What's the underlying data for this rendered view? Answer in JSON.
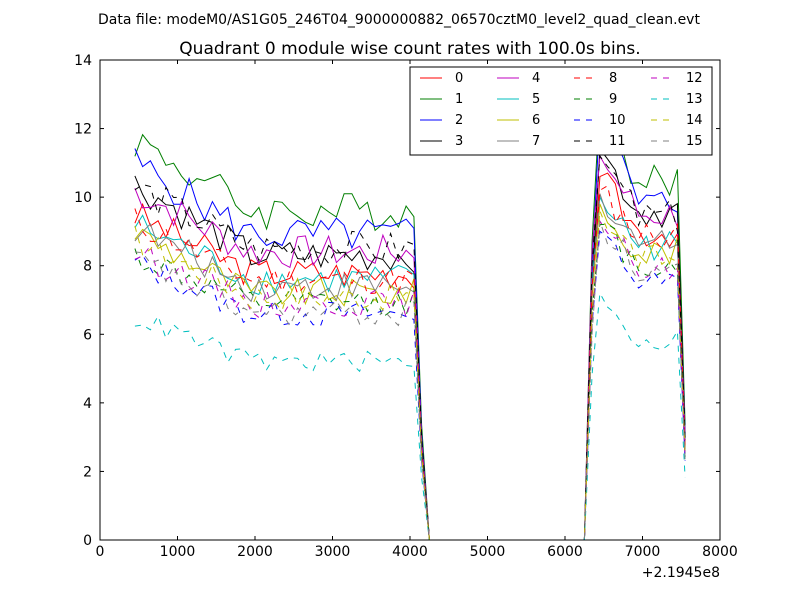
{
  "chart_data": {
    "type": "line",
    "suptitle": "Data file: modeM0/AS1G05_246T04_9000000882_06570cztM0_level2_quad_clean.evt",
    "title": "Quadrant 0 module wise count rates with 100.0s bins.",
    "xlabel": "",
    "ylabel": "",
    "offset_text": "+2.1945e8",
    "xlim": [
      0,
      8000
    ],
    "ylim": [
      0,
      14
    ],
    "x_ticks": [
      0,
      1000,
      2000,
      3000,
      4000,
      5000,
      6000,
      7000,
      8000
    ],
    "y_ticks": [
      0,
      2,
      4,
      6,
      8,
      10,
      12,
      14
    ],
    "grid": false,
    "legend": {
      "position": "top-right",
      "columns": 4
    },
    "x": [
      450,
      550,
      650,
      750,
      850,
      950,
      1050,
      1150,
      1250,
      1350,
      1450,
      1550,
      1650,
      1750,
      1850,
      1950,
      2050,
      2150,
      2250,
      2350,
      2450,
      2550,
      2650,
      2750,
      2850,
      2950,
      3050,
      3150,
      3250,
      3350,
      3450,
      3550,
      3650,
      3750,
      3850,
      3950,
      4050,
      4150,
      4250,
      4350,
      4450,
      4550,
      4650,
      4750,
      4850,
      4950,
      5050,
      5150,
      5250,
      5350,
      5450,
      5550,
      5650,
      5750,
      5850,
      5950,
      6050,
      6150,
      6250,
      6350,
      6450,
      6550,
      6650,
      6750,
      6850,
      6950,
      7050,
      7150,
      7250,
      7350,
      7450,
      7550
    ],
    "series": [
      {
        "name": "0",
        "color": "#ff0000",
        "dash": "solid",
        "start": 9.5,
        "level": 7.8,
        "peak": 10.6,
        "second": 9.0
      },
      {
        "name": "1",
        "color": "#007f00",
        "dash": "solid",
        "start": 11.7,
        "level": 9.6,
        "peak": 12.8,
        "second": 10.4
      },
      {
        "name": "2",
        "color": "#0000ff",
        "dash": "solid",
        "start": 11.0,
        "level": 8.9,
        "peak": 12.4,
        "second": 9.8
      },
      {
        "name": "3",
        "color": "#000000",
        "dash": "solid",
        "start": 10.4,
        "level": 8.3,
        "peak": 11.4,
        "second": 9.6
      },
      {
        "name": "4",
        "color": "#bf00bf",
        "dash": "solid",
        "start": 10.2,
        "level": 8.4,
        "peak": 11.2,
        "second": 9.5
      },
      {
        "name": "5",
        "color": "#00bfbf",
        "dash": "solid",
        "start": 9.2,
        "level": 7.6,
        "peak": 10.0,
        "second": 8.6
      },
      {
        "name": "6",
        "color": "#bfbf00",
        "dash": "solid",
        "start": 9.0,
        "level": 7.2,
        "peak": 9.8,
        "second": 8.4
      },
      {
        "name": "7",
        "color": "#808080",
        "dash": "solid",
        "start": 9.1,
        "level": 7.4,
        "peak": 10.1,
        "second": 8.7
      },
      {
        "name": "8",
        "color": "#ff0000",
        "dash": "dashed",
        "start": 9.3,
        "level": 7.6,
        "peak": 10.2,
        "second": 8.9
      },
      {
        "name": "9",
        "color": "#007f00",
        "dash": "dashed",
        "start": 8.3,
        "level": 6.9,
        "peak": 9.2,
        "second": 8.0
      },
      {
        "name": "10",
        "color": "#0000ff",
        "dash": "dashed",
        "start": 8.1,
        "level": 6.6,
        "peak": 9.0,
        "second": 7.5
      },
      {
        "name": "11",
        "color": "#000000",
        "dash": "dashed",
        "start": 10.3,
        "level": 8.5,
        "peak": 11.2,
        "second": 9.4
      },
      {
        "name": "12",
        "color": "#bf00bf",
        "dash": "dashed",
        "start": 8.4,
        "level": 6.9,
        "peak": 9.3,
        "second": 7.9
      },
      {
        "name": "13",
        "color": "#00bfbf",
        "dash": "dashed",
        "start": 6.5,
        "level": 5.2,
        "peak": 7.2,
        "second": 5.8
      },
      {
        "name": "14",
        "color": "#bfbf00",
        "dash": "dashed",
        "start": 8.8,
        "level": 7.1,
        "peak": 9.6,
        "second": 8.2
      },
      {
        "name": "15",
        "color": "#808080",
        "dash": "dashed",
        "start": 8.2,
        "level": 6.6,
        "peak": 9.3,
        "second": 7.8
      }
    ]
  }
}
